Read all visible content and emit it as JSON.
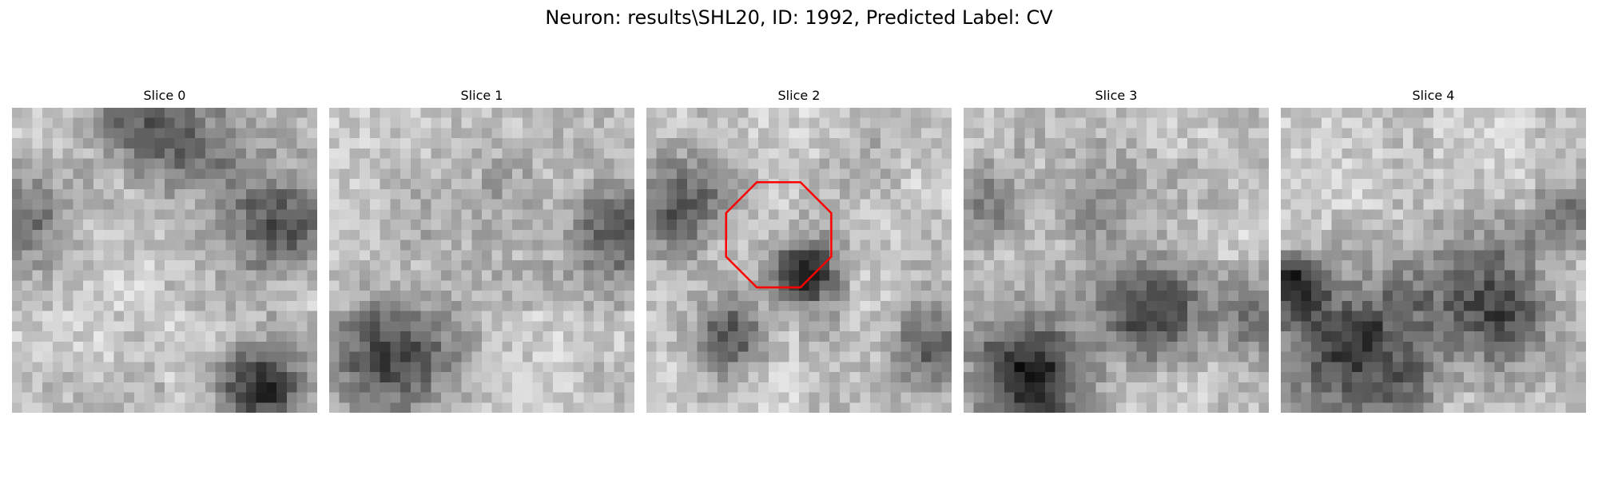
{
  "figure": {
    "title": "Neuron: results\\SHL20, ID: 1992, Predicted Label: CV"
  },
  "panels": [
    {
      "label": "Slice 0",
      "seed": 11,
      "blobs": [
        [
          0.55,
          0.1,
          0.13,
          0.6
        ],
        [
          0.0,
          0.35,
          0.12,
          0.55
        ],
        [
          0.9,
          0.38,
          0.13,
          0.65
        ],
        [
          0.82,
          0.93,
          0.1,
          0.85
        ],
        [
          0.35,
          0.0,
          0.1,
          0.35
        ]
      ]
    },
    {
      "label": "Slice 1",
      "seed": 23,
      "blobs": [
        [
          0.2,
          0.82,
          0.14,
          0.7
        ],
        [
          0.97,
          0.4,
          0.12,
          0.55
        ],
        [
          0.5,
          0.38,
          0.2,
          0.15
        ]
      ]
    },
    {
      "label": "Slice 2",
      "seed": 37,
      "blobs": [
        [
          0.52,
          0.55,
          0.08,
          0.95
        ],
        [
          0.1,
          0.3,
          0.12,
          0.6
        ],
        [
          0.27,
          0.75,
          0.09,
          0.6
        ],
        [
          0.95,
          0.8,
          0.1,
          0.45
        ],
        [
          0.75,
          0.1,
          0.1,
          0.2
        ]
      ]
    },
    {
      "label": "Slice 3",
      "seed": 51,
      "blobs": [
        [
          0.62,
          0.66,
          0.12,
          0.75
        ],
        [
          0.2,
          0.9,
          0.14,
          0.85
        ],
        [
          0.05,
          0.3,
          0.1,
          0.4
        ],
        [
          0.97,
          0.7,
          0.1,
          0.4
        ],
        [
          0.45,
          0.3,
          0.12,
          0.3
        ]
      ]
    },
    {
      "label": "Slice 4",
      "seed": 67,
      "blobs": [
        [
          0.25,
          0.8,
          0.18,
          0.75
        ],
        [
          0.7,
          0.65,
          0.15,
          0.7
        ],
        [
          0.03,
          0.58,
          0.07,
          0.8
        ],
        [
          0.95,
          0.35,
          0.08,
          0.45
        ]
      ]
    }
  ],
  "overlay": {
    "panel": 2,
    "shape": "octagon",
    "color": "#ff0000",
    "center_col": 12.5,
    "center_row": 12.0,
    "radius_px": 5.6
  },
  "colormap": "gray",
  "grid_size": 30
}
